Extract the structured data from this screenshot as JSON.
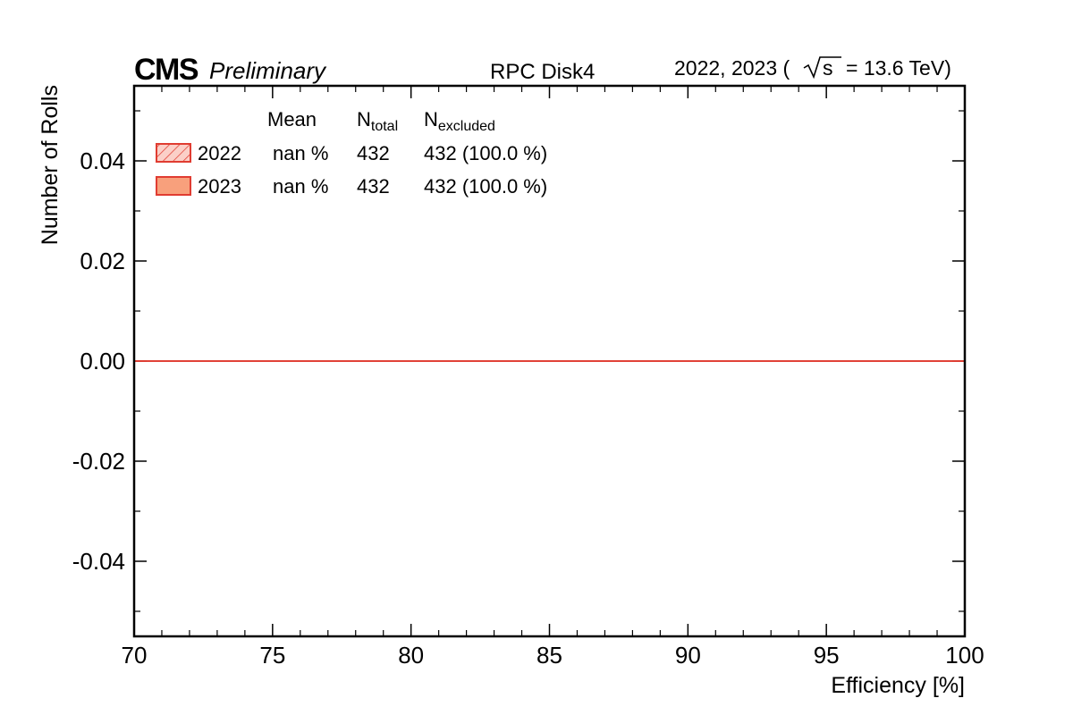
{
  "header": {
    "experiment": "CMS",
    "status": "Preliminary",
    "subtitle": "RPC Disk4",
    "lumi_years": "2022, 2023 (",
    "lumi_sqrt": "s",
    "lumi_energy": "= 13.6 TeV)"
  },
  "chart_data": {
    "type": "bar",
    "title": "RPC Disk4",
    "xlabel": "Efficiency [%]",
    "ylabel": "Number of Rolls",
    "xlim": [
      70,
      100
    ],
    "ylim": [
      -0.055,
      0.055
    ],
    "x_ticks": [
      70,
      75,
      80,
      85,
      90,
      95,
      100
    ],
    "x_tick_labels": [
      "70",
      "75",
      "80",
      "85",
      "90",
      "95",
      "100"
    ],
    "y_ticks": [
      0.04,
      0.02,
      0.0,
      -0.02,
      -0.04
    ],
    "y_tick_labels": [
      "0.04",
      "0.02",
      "0.00",
      "-0.02",
      "-0.04"
    ],
    "grid": false,
    "legend_position": "top-left",
    "legend_headers": {
      "mean": "Mean",
      "n_total": "N",
      "n_total_sub": "total",
      "n_excluded": "N",
      "n_excluded_sub": "excluded"
    },
    "series": [
      {
        "name": "2022",
        "style": "hatched",
        "mean": "nan %",
        "n_total": "432",
        "n_excluded": "432 (100.0 %)",
        "x": [
          70,
          100
        ],
        "values": [
          0,
          0
        ]
      },
      {
        "name": "2023",
        "style": "filled",
        "mean": "nan %",
        "n_total": "432",
        "n_excluded": "432 (100.0 %)",
        "x": [
          70,
          100
        ],
        "values": [
          0,
          0
        ]
      }
    ],
    "colors": {
      "line": "#e03c31",
      "fill_2023": "#f8a07c",
      "fill_2022": "#fbd0c8",
      "hatch": "#e03c31",
      "axis": "#000000"
    }
  }
}
